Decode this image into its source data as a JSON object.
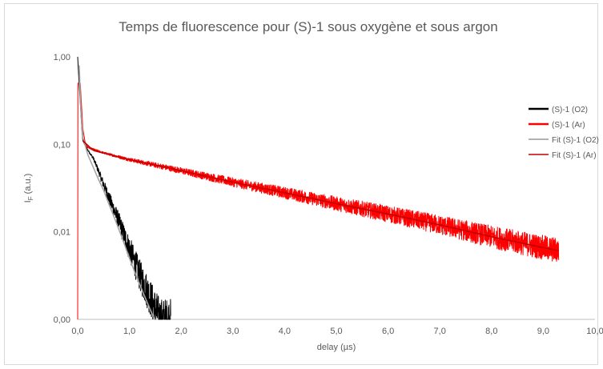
{
  "chart_data": {
    "type": "line",
    "title": "Temps de fluorescence pour (S)-1 sous oxygène et sous argon",
    "xlabel": "delay (µs)",
    "ylabel_main": "I",
    "ylabel_sub": "F",
    "ylabel_tail": " (a.u.)",
    "y_scale": "log",
    "xlim": [
      0,
      10
    ],
    "ylim": [
      0.001,
      1
    ],
    "grid": false,
    "legend_position": "right",
    "x_ticks": [
      0,
      1,
      2,
      3,
      4,
      5,
      6,
      7,
      8,
      9,
      10
    ],
    "x_tick_labels": [
      "0,0",
      "1,0",
      "2,0",
      "3,0",
      "4,0",
      "5,0",
      "6,0",
      "7,0",
      "8,0",
      "9,0",
      "10,0"
    ],
    "y_ticks": [
      0.001,
      0.01,
      0.1,
      1
    ],
    "y_tick_labels": [
      "0,00",
      "0,01",
      "0,10",
      "1,00"
    ],
    "series": [
      {
        "name": "(S)-1 (O2)",
        "color": "#000000",
        "kind": "noisy",
        "x_range": [
          0.0,
          1.8
        ],
        "points": [
          [
            0.0,
            1.0
          ],
          [
            0.02,
            0.6
          ],
          [
            0.05,
            0.3
          ],
          [
            0.08,
            0.15
          ],
          [
            0.1,
            0.11
          ],
          [
            0.2,
            0.085
          ],
          [
            0.3,
            0.07
          ],
          [
            0.4,
            0.05
          ],
          [
            0.5,
            0.035
          ],
          [
            0.6,
            0.025
          ],
          [
            0.7,
            0.018
          ],
          [
            0.8,
            0.013
          ],
          [
            0.9,
            0.009
          ],
          [
            1.0,
            0.0065
          ],
          [
            1.1,
            0.0045
          ],
          [
            1.2,
            0.0032
          ],
          [
            1.3,
            0.0024
          ],
          [
            1.4,
            0.0018
          ],
          [
            1.5,
            0.0013
          ],
          [
            1.6,
            0.001
          ],
          [
            1.8,
            0.001
          ]
        ]
      },
      {
        "name": "(S)-1 (Ar)",
        "color": "#ff0000",
        "kind": "noisy",
        "x_range": [
          0.0,
          9.3
        ],
        "points": [
          [
            0.0,
            0.001
          ],
          [
            0.005,
            0.5
          ],
          [
            0.05,
            0.5
          ],
          [
            0.1,
            0.15
          ],
          [
            0.15,
            0.1
          ],
          [
            0.2,
            0.092
          ],
          [
            0.5,
            0.08
          ],
          [
            1.0,
            0.067
          ],
          [
            2.0,
            0.05
          ],
          [
            3.0,
            0.037
          ],
          [
            4.0,
            0.028
          ],
          [
            5.0,
            0.021
          ],
          [
            6.0,
            0.016
          ],
          [
            7.0,
            0.012
          ],
          [
            8.0,
            0.0088
          ],
          [
            9.0,
            0.0066
          ],
          [
            9.3,
            0.0061
          ]
        ]
      },
      {
        "name": "Fit (S)-1 (O2)",
        "color": "#a6a6a6",
        "kind": "smooth",
        "points": [
          [
            0.03,
            0.8
          ],
          [
            0.06,
            0.25
          ],
          [
            0.1,
            0.12
          ],
          [
            0.2,
            0.075
          ],
          [
            0.3,
            0.055
          ],
          [
            0.4,
            0.04
          ],
          [
            0.5,
            0.03
          ],
          [
            0.6,
            0.021
          ],
          [
            0.7,
            0.015
          ],
          [
            0.8,
            0.0105
          ],
          [
            0.9,
            0.0073
          ],
          [
            1.0,
            0.005
          ],
          [
            1.1,
            0.0035
          ],
          [
            1.2,
            0.0025
          ],
          [
            1.3,
            0.0018
          ],
          [
            1.4,
            0.0013
          ],
          [
            1.5,
            0.00095
          ]
        ]
      },
      {
        "name": "Fit (S)-1 (Ar)",
        "color": "#c00000",
        "kind": "smooth",
        "points": [
          [
            0.1,
            0.11
          ],
          [
            0.3,
            0.085
          ],
          [
            1.0,
            0.067
          ],
          [
            2.0,
            0.05
          ],
          [
            3.0,
            0.037
          ],
          [
            4.0,
            0.028
          ],
          [
            5.0,
            0.021
          ],
          [
            6.0,
            0.016
          ],
          [
            7.0,
            0.012
          ],
          [
            8.0,
            0.0088
          ],
          [
            9.0,
            0.0066
          ],
          [
            9.3,
            0.0061
          ]
        ]
      }
    ]
  }
}
